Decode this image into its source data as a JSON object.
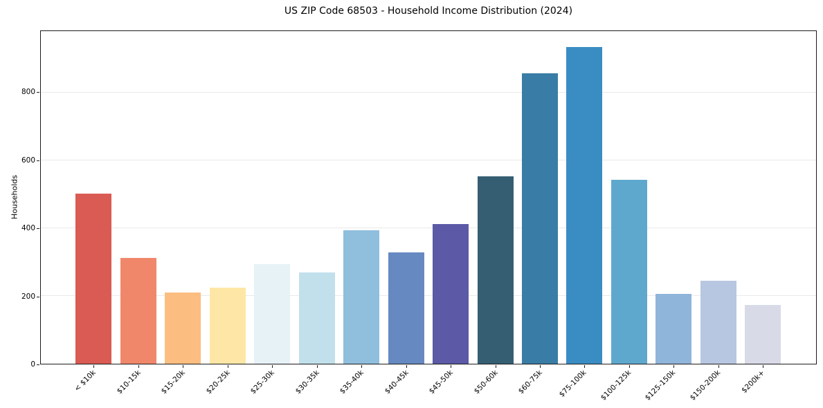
{
  "chart_data": {
    "type": "bar",
    "title": "US ZIP Code 68503 - Household Income Distribution (2024)",
    "xlabel": "",
    "ylabel": "Households",
    "categories": [
      "< $10k",
      "$10-15k",
      "$15-20k",
      "$20-25k",
      "$25-30k",
      "$30-35k",
      "$35-40k",
      "$40-45k",
      "$45-50k",
      "$50-60k",
      "$60-75k",
      "$75-100k",
      "$100-125k",
      "$125-150k",
      "$150-200k",
      "$200k+"
    ],
    "values": [
      501,
      312,
      211,
      225,
      294,
      269,
      393,
      328,
      411,
      553,
      856,
      934,
      542,
      207,
      245,
      174
    ],
    "bar_colors": [
      "#d95b53",
      "#f0876b",
      "#fcbd80",
      "#fde6a6",
      "#e7f2f7",
      "#c1e0ec",
      "#90bedd",
      "#6689c1",
      "#5c59a7",
      "#355e72",
      "#397da6",
      "#3a8dc3",
      "#5fa8cd",
      "#90b5da",
      "#b8c7e1",
      "#d9dae8"
    ],
    "y_ticks": [
      0,
      200,
      400,
      600,
      800
    ],
    "ylim": [
      0,
      981
    ],
    "grid": "horizontal",
    "legend_position": "none"
  },
  "colors": {
    "background": "#ffffff",
    "grid": "#e9e9e9",
    "spine": "#1a1a1a",
    "text": "#000000"
  }
}
